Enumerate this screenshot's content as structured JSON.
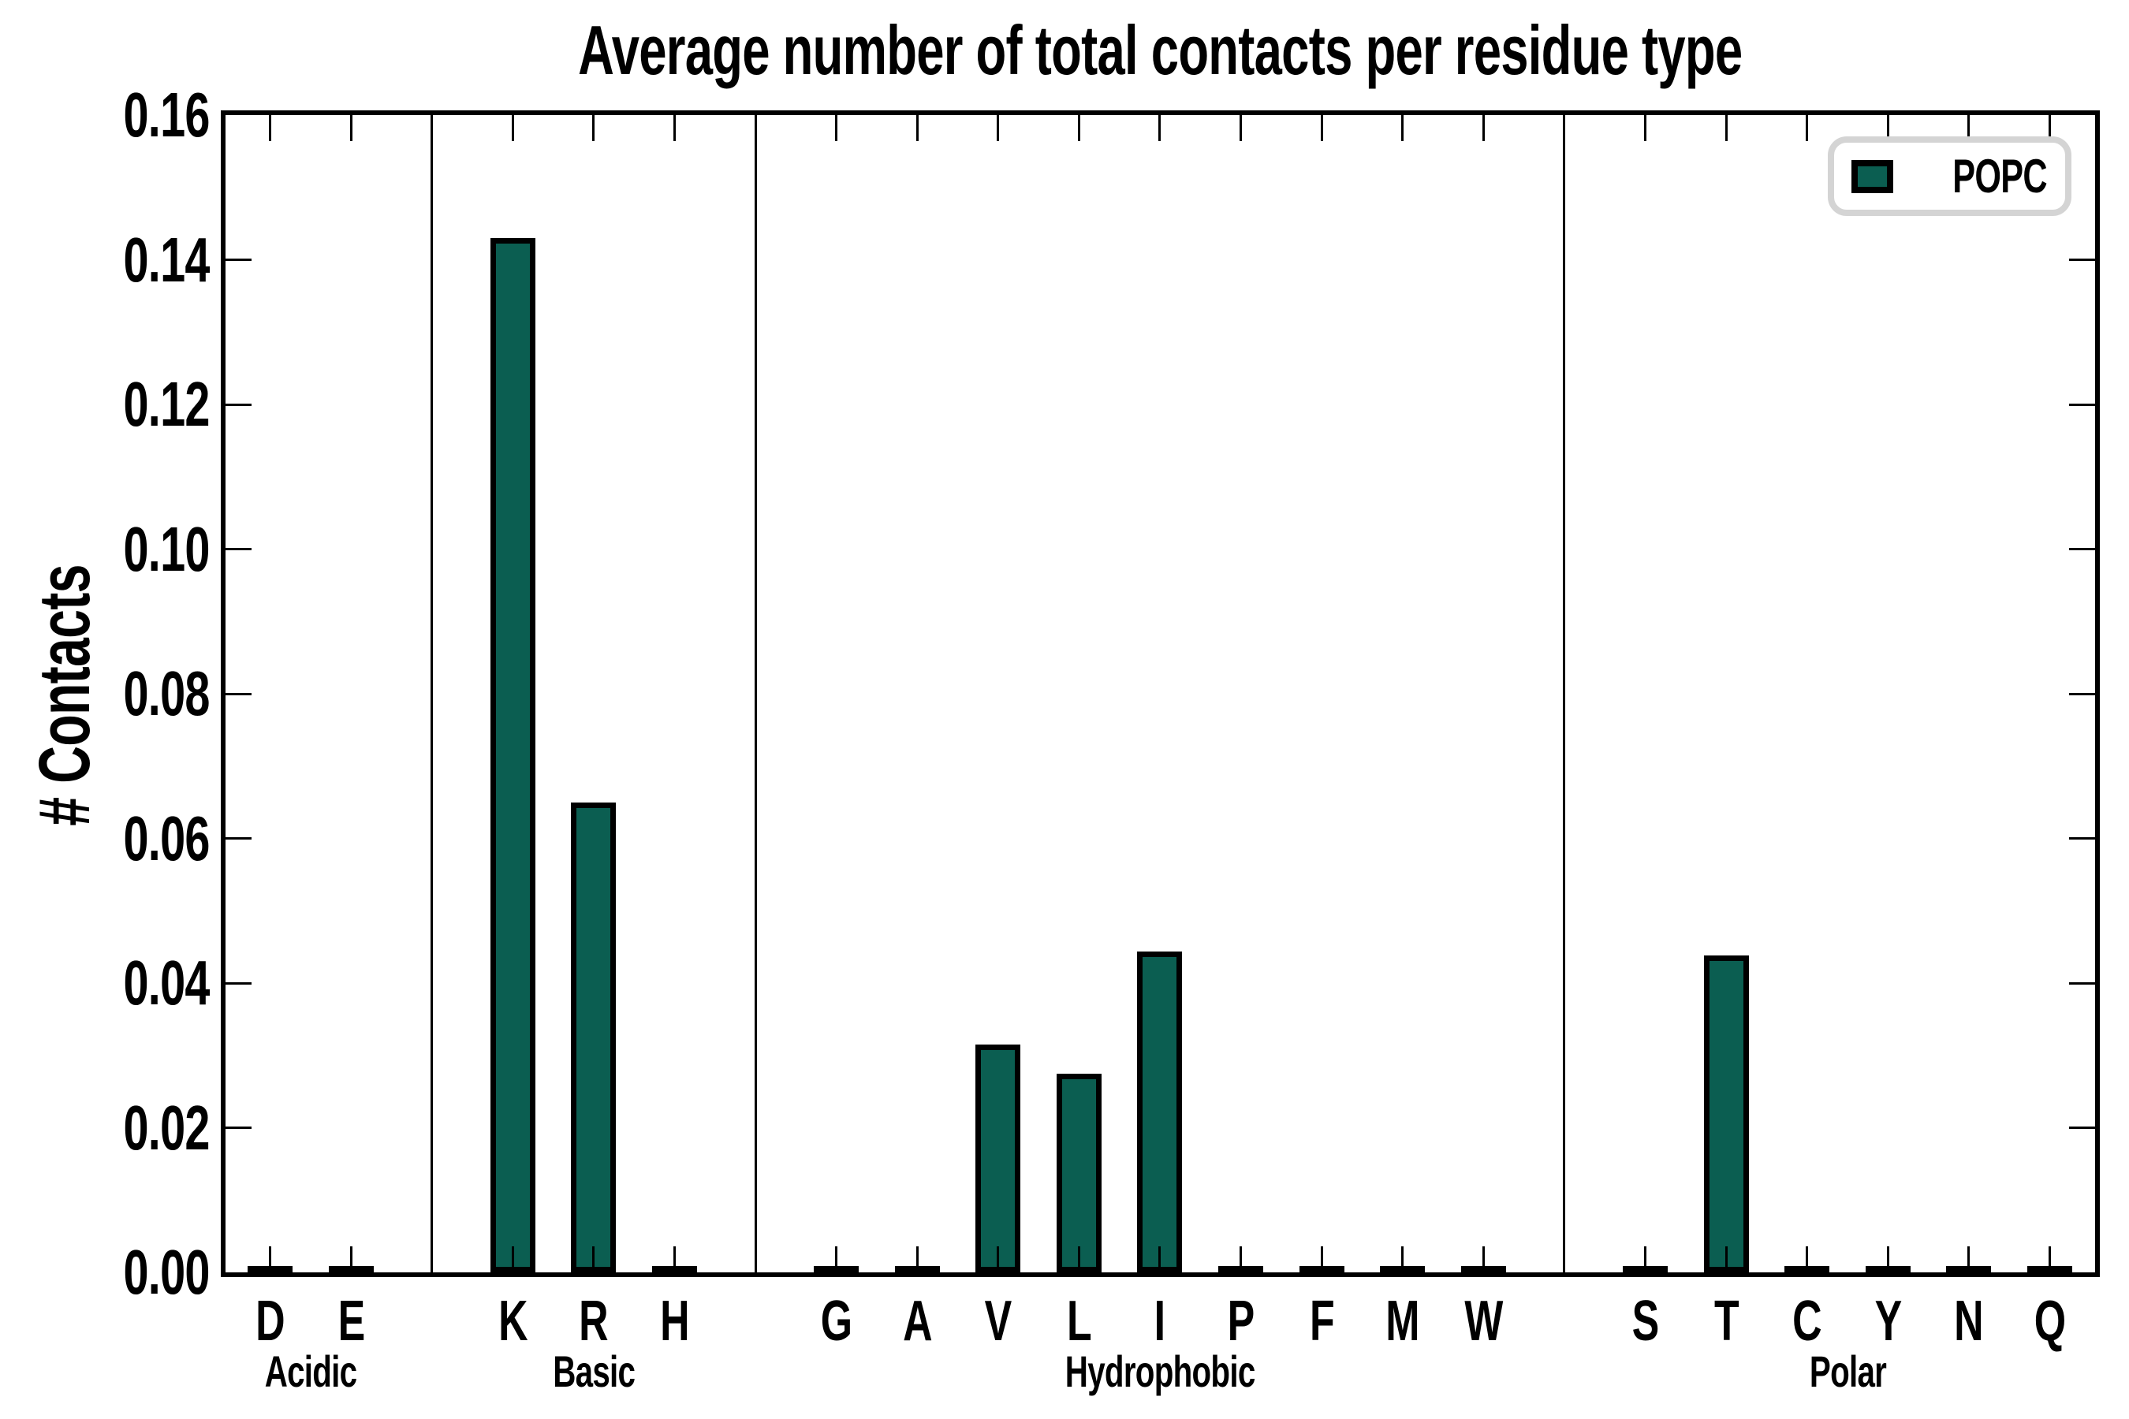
{
  "title": "Average number of total contacts per residue type",
  "ylabel": "# Contacts",
  "legend": {
    "label": "POPC"
  },
  "colors": {
    "bar_fill": "#0b5e51",
    "bar_edge": "#000000",
    "axis": "#000000",
    "legend_border": "#d4d4d4"
  },
  "y_axis": {
    "min": 0.0,
    "max": 0.16,
    "tick_step": 0.02,
    "tick_labels": [
      "0.00",
      "0.02",
      "0.04",
      "0.06",
      "0.08",
      "0.10",
      "0.12",
      "0.14",
      "0.16"
    ]
  },
  "groups": [
    {
      "name": "Acidic",
      "residues": [
        {
          "label": "D",
          "value": 0.0
        },
        {
          "label": "E",
          "value": 0.0
        }
      ]
    },
    {
      "name": "Basic",
      "residues": [
        {
          "label": "K",
          "value": 0.143
        },
        {
          "label": "R",
          "value": 0.065
        },
        {
          "label": "H",
          "value": 0.0
        }
      ]
    },
    {
      "name": "Hydrophobic",
      "residues": [
        {
          "label": "G",
          "value": 0.0
        },
        {
          "label": "A",
          "value": 0.0
        },
        {
          "label": "V",
          "value": 0.0315
        },
        {
          "label": "L",
          "value": 0.0275
        },
        {
          "label": "I",
          "value": 0.0444
        },
        {
          "label": "P",
          "value": 0.0
        },
        {
          "label": "F",
          "value": 0.0
        },
        {
          "label": "M",
          "value": 0.0
        },
        {
          "label": "W",
          "value": 0.0
        }
      ]
    },
    {
      "name": "Polar",
      "residues": [
        {
          "label": "S",
          "value": 0.0
        },
        {
          "label": "T",
          "value": 0.0438
        },
        {
          "label": "C",
          "value": 0.0
        },
        {
          "label": "Y",
          "value": 0.0
        },
        {
          "label": "N",
          "value": 0.0
        },
        {
          "label": "Q",
          "value": 0.0
        }
      ]
    }
  ],
  "chart_data": {
    "type": "bar",
    "title": "Average number of total contacts per residue type",
    "xlabel": "",
    "ylabel": "# Contacts",
    "ylim": [
      0.0,
      0.16
    ],
    "yticks": [
      0.0,
      0.02,
      0.04,
      0.06,
      0.08,
      0.1,
      0.12,
      0.14,
      0.16
    ],
    "grid": false,
    "legend_position": "upper right",
    "categories": [
      "D",
      "E",
      "K",
      "R",
      "H",
      "G",
      "A",
      "V",
      "L",
      "I",
      "P",
      "F",
      "M",
      "W",
      "S",
      "T",
      "C",
      "Y",
      "N",
      "Q"
    ],
    "category_groups": {
      "Acidic": [
        "D",
        "E"
      ],
      "Basic": [
        "K",
        "R",
        "H"
      ],
      "Hydrophobic": [
        "G",
        "A",
        "V",
        "L",
        "I",
        "P",
        "F",
        "M",
        "W"
      ],
      "Polar": [
        "S",
        "T",
        "C",
        "Y",
        "N",
        "Q"
      ]
    },
    "series": [
      {
        "name": "POPC",
        "color": "#0b5e51",
        "values": [
          0.0,
          0.0,
          0.143,
          0.065,
          0.0,
          0.0,
          0.0,
          0.0315,
          0.0275,
          0.0444,
          0.0,
          0.0,
          0.0,
          0.0,
          0.0,
          0.0438,
          0.0,
          0.0,
          0.0,
          0.0
        ]
      }
    ]
  }
}
